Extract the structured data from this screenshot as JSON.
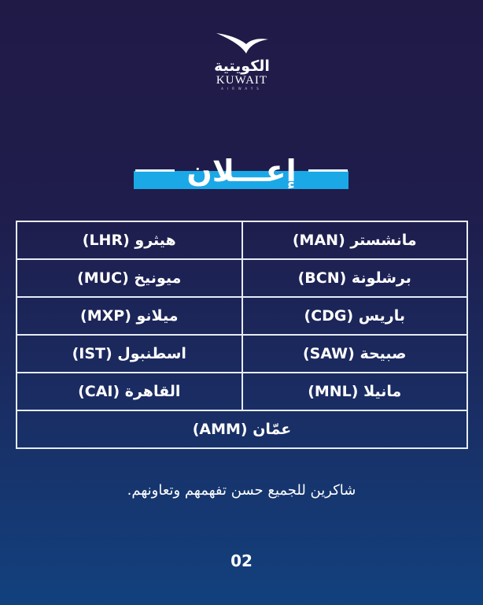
{
  "logo": {
    "arabic": "الكويتية",
    "english": "KUWAIT",
    "sub": "AIRWAYS"
  },
  "title": "إعـــلان",
  "colors": {
    "accent": "#1ba8e6",
    "background_top": "#201a47",
    "background_bottom": "#12417e"
  },
  "destinations": {
    "rows": [
      [
        "مانشستر (MAN)",
        "هيثرو (LHR)"
      ],
      [
        "برشلونة (BCN)",
        "ميونيخ (MUC)"
      ],
      [
        "باريس (CDG)",
        "ميلانو (MXP)"
      ],
      [
        "صبيحة (SAW)",
        "اسطنبول (IST)"
      ],
      [
        "مانيلا (MNL)",
        "القاهرة (CAI)"
      ]
    ],
    "last": "عمّان (AMM)"
  },
  "thanks": "شاكرين للجميع حسن تفهمهم وتعاونهم.",
  "page_number": "02"
}
